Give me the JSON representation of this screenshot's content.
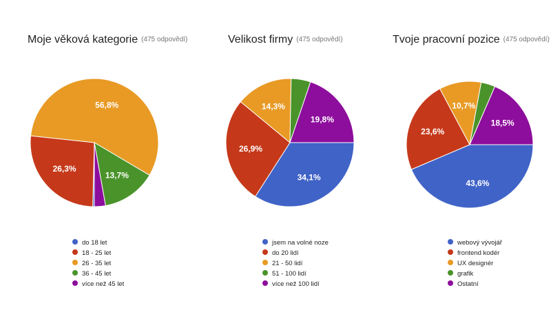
{
  "chart_data": [
    {
      "type": "pie",
      "title": "Moje věková kategorie",
      "subtitle": "(475 odpovědí)",
      "categories": [
        "do 18 let",
        "18 - 25 let",
        "26 - 35 let",
        "36 - 45 let",
        "více než 45 let"
      ],
      "values": [
        0.4,
        26.3,
        56.8,
        13.7,
        2.8
      ],
      "labels": [
        "",
        "26,3%",
        "56,8%",
        "13,7%",
        ""
      ],
      "colors": [
        "#4063C7",
        "#C5391A",
        "#E89A25",
        "#4A932A",
        "#8D0E9C"
      ],
      "start_angle": 90,
      "legend_position": "bottom"
    },
    {
      "type": "pie",
      "title": "Velikost firmy",
      "subtitle": "(475 odpovědí)",
      "categories": [
        "jsem na volné noze",
        "do 20 lidí",
        "21 - 50 lidí",
        "51 - 100 lidí",
        "více než 100 lidí"
      ],
      "values": [
        34.1,
        26.9,
        14.3,
        4.9,
        19.8
      ],
      "labels": [
        "34,1%",
        "26,9%",
        "14,3%",
        "",
        "19,8%"
      ],
      "colors": [
        "#4063C7",
        "#C5391A",
        "#E89A25",
        "#4A932A",
        "#8D0E9C"
      ],
      "start_angle": 0,
      "legend_position": "bottom"
    },
    {
      "type": "pie",
      "title": "Tvoje pracovní pozice",
      "subtitle": "(475 odpovědí)",
      "categories": [
        "webový vývojář",
        "frontend kodér",
        "UX designér",
        "grafik",
        "Ostatní"
      ],
      "values": [
        43.6,
        23.6,
        10.7,
        3.6,
        18.5
      ],
      "labels": [
        "43,6%",
        "23,6%",
        "10,7%",
        "",
        "18,5%"
      ],
      "colors": [
        "#4063C7",
        "#C5391A",
        "#E89A25",
        "#4A932A",
        "#8D0E9C"
      ],
      "start_angle": 0,
      "legend_position": "bottom"
    }
  ]
}
